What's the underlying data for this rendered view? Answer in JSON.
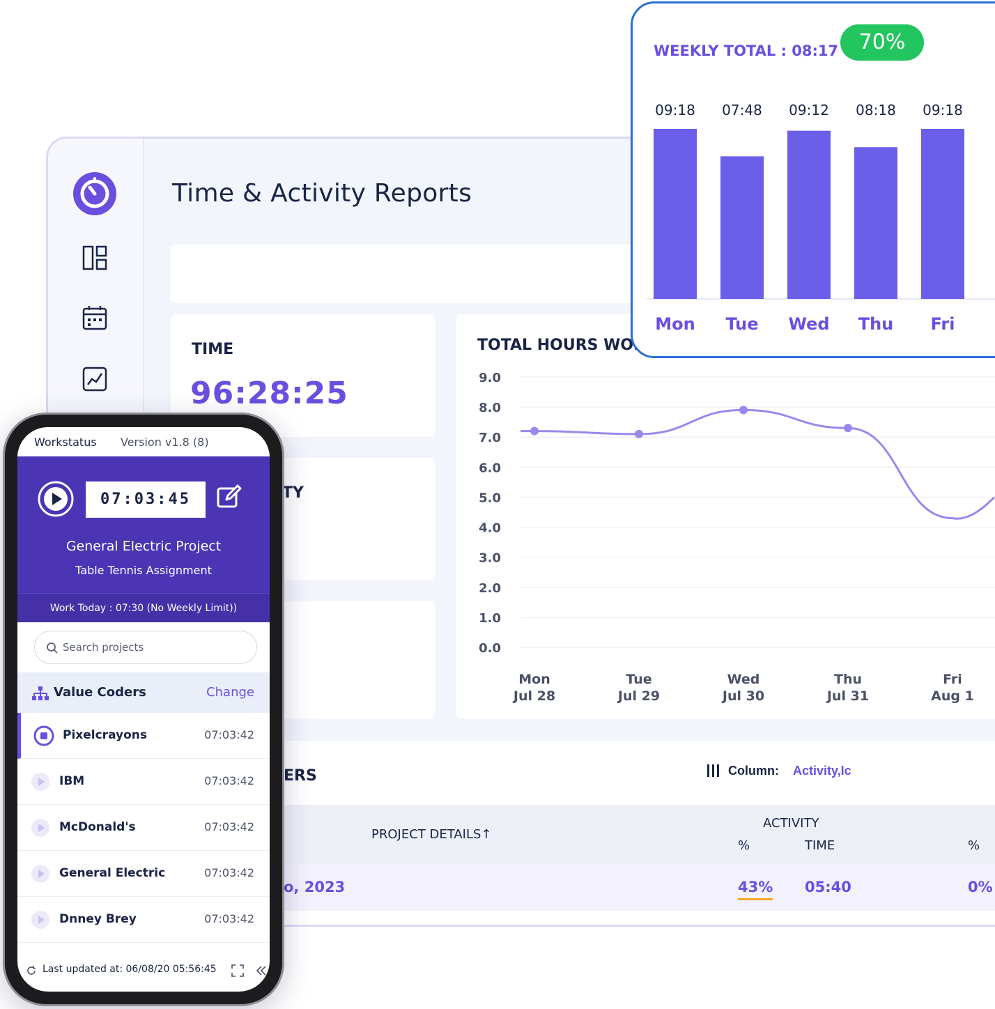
{
  "dashboard": {
    "title": "Time & Activity Reports",
    "time_label": "TIME",
    "time_value": "96:28:25",
    "activity_label_partial": "TY",
    "chart_title": "TOTAL HOURS WORI",
    "users_title_partial": "ERS",
    "column_label": "Column:",
    "column_value": "Activity,Ic",
    "table": {
      "project_details": "PROJECT DETAILS↑",
      "activity_header": "ACTIVITY",
      "pct_header": "%",
      "time_header": "TIME",
      "pct_header_2": "%",
      "row": {
        "date_partial": "o, 2023",
        "activity_pct": "43%",
        "time": "05:40",
        "pct": "0%"
      }
    },
    "colors": {
      "accent": "#6a4fdf",
      "underline": "#f5a623",
      "text": "#1a2445"
    }
  },
  "weekly": {
    "title": "WEEKLY TOTAL :  08:17",
    "badge": "70%"
  },
  "chart_data": [
    {
      "type": "bar",
      "categories": [
        "Mon",
        "Tue",
        "Wed",
        "Thu",
        "Fri"
      ],
      "labels": [
        "09:18",
        "07:48",
        "09:12",
        "08:18",
        "09:18"
      ],
      "values": [
        9.3,
        7.8,
        9.2,
        8.3,
        9.3
      ],
      "color": "#6b5ee8"
    },
    {
      "type": "line",
      "title": "TOTAL HOURS WORI",
      "categories": [
        "Mon Jul 28",
        "Tue Jul 29",
        "Wed Jul 30",
        "Thu Jul 31",
        "Fri Aug 1"
      ],
      "x_day": [
        "Mon",
        "Tue",
        "Wed",
        "Thu",
        "Fri"
      ],
      "x_date": [
        "Jul 28",
        "Jul 29",
        "Jul 30",
        "Jul 31",
        "Aug 1"
      ],
      "values": [
        7.2,
        7.1,
        7.9,
        7.3,
        4.3
      ],
      "yticks": [
        "9.0",
        "8.0",
        "7.0",
        "6.0",
        "5.0",
        "4.0",
        "3.0",
        "2.0",
        "1.0",
        "0.0"
      ],
      "ylim": [
        0,
        9
      ],
      "grid": true,
      "color": "#9b88ec"
    }
  ],
  "phone": {
    "app_name": "Workstatus",
    "version": "Version v1.8 (8)",
    "timer": "07:03:45",
    "project": "General Electric Project",
    "task": "Table Tennis Assignment",
    "work_today": "Work Today : 07:30 (No Weekly Limit))",
    "search_placeholder": "Search projects",
    "org_name": "Value Coders",
    "org_change": "Change",
    "projects": [
      {
        "name": "Pixelcrayons",
        "time": "07:03:42"
      },
      {
        "name": "IBM",
        "time": "07:03:42"
      },
      {
        "name": "McDonald's",
        "time": "07:03:42"
      },
      {
        "name": "General Electric",
        "time": "07:03:42"
      },
      {
        "name": "Dnney Brey",
        "time": "07:03:42"
      }
    ],
    "last_updated": "Last updated at: 06/08/20  05:56:45"
  }
}
